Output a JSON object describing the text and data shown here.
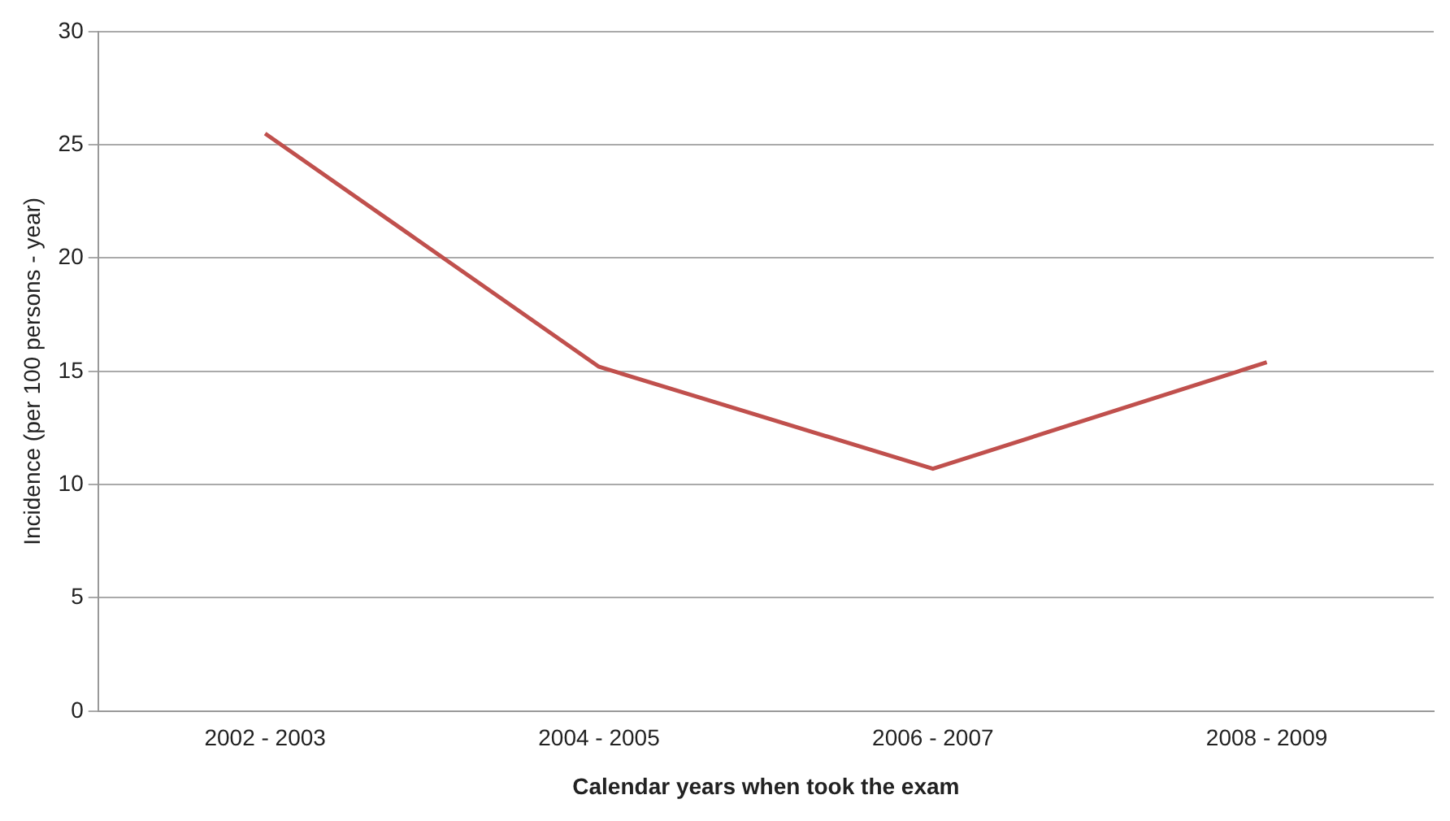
{
  "chart_data": {
    "type": "line",
    "xlabel": "Calendar years when took the exam",
    "ylabel": "Incidence (per 100 persons - year)",
    "categories": [
      "2002 - 2003",
      "2004 - 2005",
      "2006 - 2007",
      "2008 - 2009"
    ],
    "series": [
      {
        "color": "#c0504d",
        "values": [
          25.5,
          15.2,
          10.7,
          15.4
        ]
      }
    ],
    "ylim": [
      0,
      30
    ],
    "yticks": [
      0,
      5,
      10,
      15,
      20,
      25,
      30
    ],
    "grid": "y",
    "legend": false,
    "marker": "none",
    "line_style": "solid"
  }
}
